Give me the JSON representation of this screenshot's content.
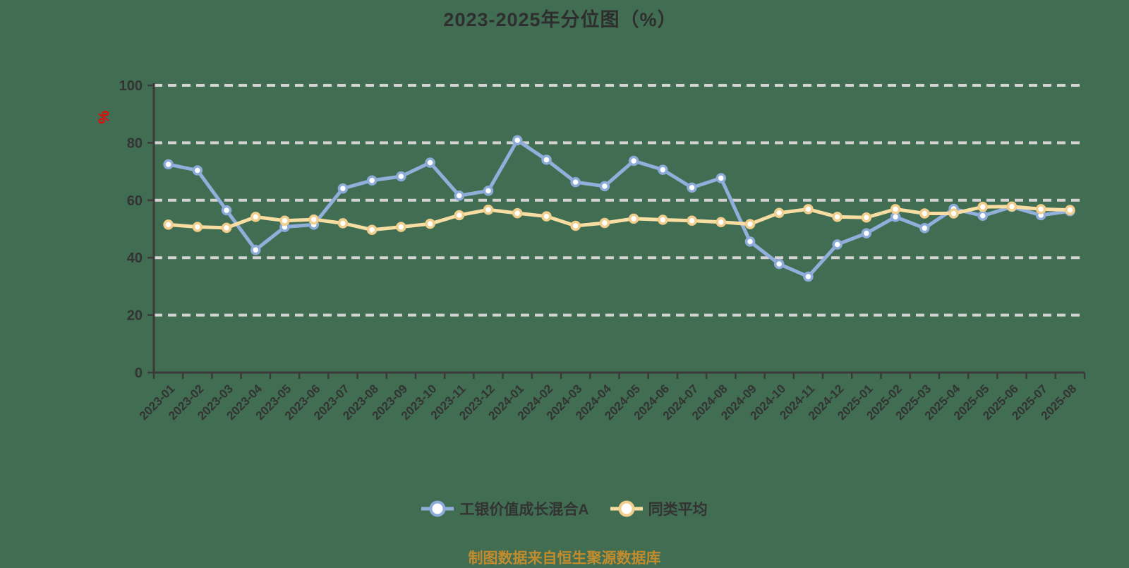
{
  "title": "2023-2025年分位图（%）",
  "y_axis_unit": "%",
  "footer": "制图数据来自恒生聚源数据库",
  "colors": {
    "background": "#416D52",
    "fund_line": "#92AFDB",
    "fund_marker_ring": "#8CABD8",
    "average_line": "#F8DEA2",
    "average_marker_ring": "#F1CE8C",
    "grid_line": "#D3D3D3",
    "axis_line": "#3A3A3A",
    "tick_text": "#333333",
    "unit_label": "#F40000",
    "footer_text": "#C08C2D"
  },
  "chart_data": {
    "type": "line",
    "title": "2023-2025年分位图（%）",
    "ylabel": "%",
    "ylim": [
      0,
      100
    ],
    "y_ticks": [
      0,
      20,
      40,
      60,
      80,
      100
    ],
    "grid": "horizontal-dashed",
    "legend_position": "bottom",
    "categories": [
      "2023-01",
      "2023-02",
      "2023-03",
      "2023-04",
      "2023-05",
      "2023-06",
      "2023-07",
      "2023-08",
      "2023-09",
      "2023-10",
      "2023-11",
      "2023-12",
      "2024-01",
      "2024-02",
      "2024-03",
      "2024-04",
      "2024-05",
      "2024-06",
      "2024-07",
      "2024-08",
      "2024-09",
      "2024-10",
      "2024-11",
      "2024-12",
      "2025-01",
      "2025-02",
      "2025-03",
      "2025-04",
      "2025-05",
      "2025-06",
      "2025-07",
      "2025-08"
    ],
    "series": [
      {
        "name": "工银价值成长混合A",
        "color": "#92AFDB",
        "marker_ring": "#8CABD8",
        "values": [
          72.5,
          70.4,
          56.5,
          42.7,
          50.7,
          51.5,
          64.1,
          66.9,
          68.3,
          73.1,
          61.6,
          63.3,
          80.9,
          74.1,
          66.3,
          64.9,
          73.7,
          70.6,
          64.4,
          67.7,
          45.6,
          37.8,
          33.4,
          44.6,
          48.5,
          54.2,
          50.3,
          57.0,
          54.6,
          57.7,
          54.8,
          56.2
        ]
      },
      {
        "name": "同类平均",
        "color": "#F8DEA2",
        "marker_ring": "#F1CE8C",
        "values": [
          51.5,
          50.7,
          50.4,
          54.2,
          52.9,
          53.3,
          52.0,
          49.7,
          50.7,
          51.8,
          54.8,
          56.7,
          55.5,
          54.4,
          51.1,
          52.1,
          53.6,
          53.2,
          52.9,
          52.4,
          51.7,
          55.6,
          56.9,
          54.2,
          54.0,
          56.9,
          55.4,
          55.4,
          57.7,
          57.8,
          56.9,
          56.6
        ]
      }
    ]
  }
}
